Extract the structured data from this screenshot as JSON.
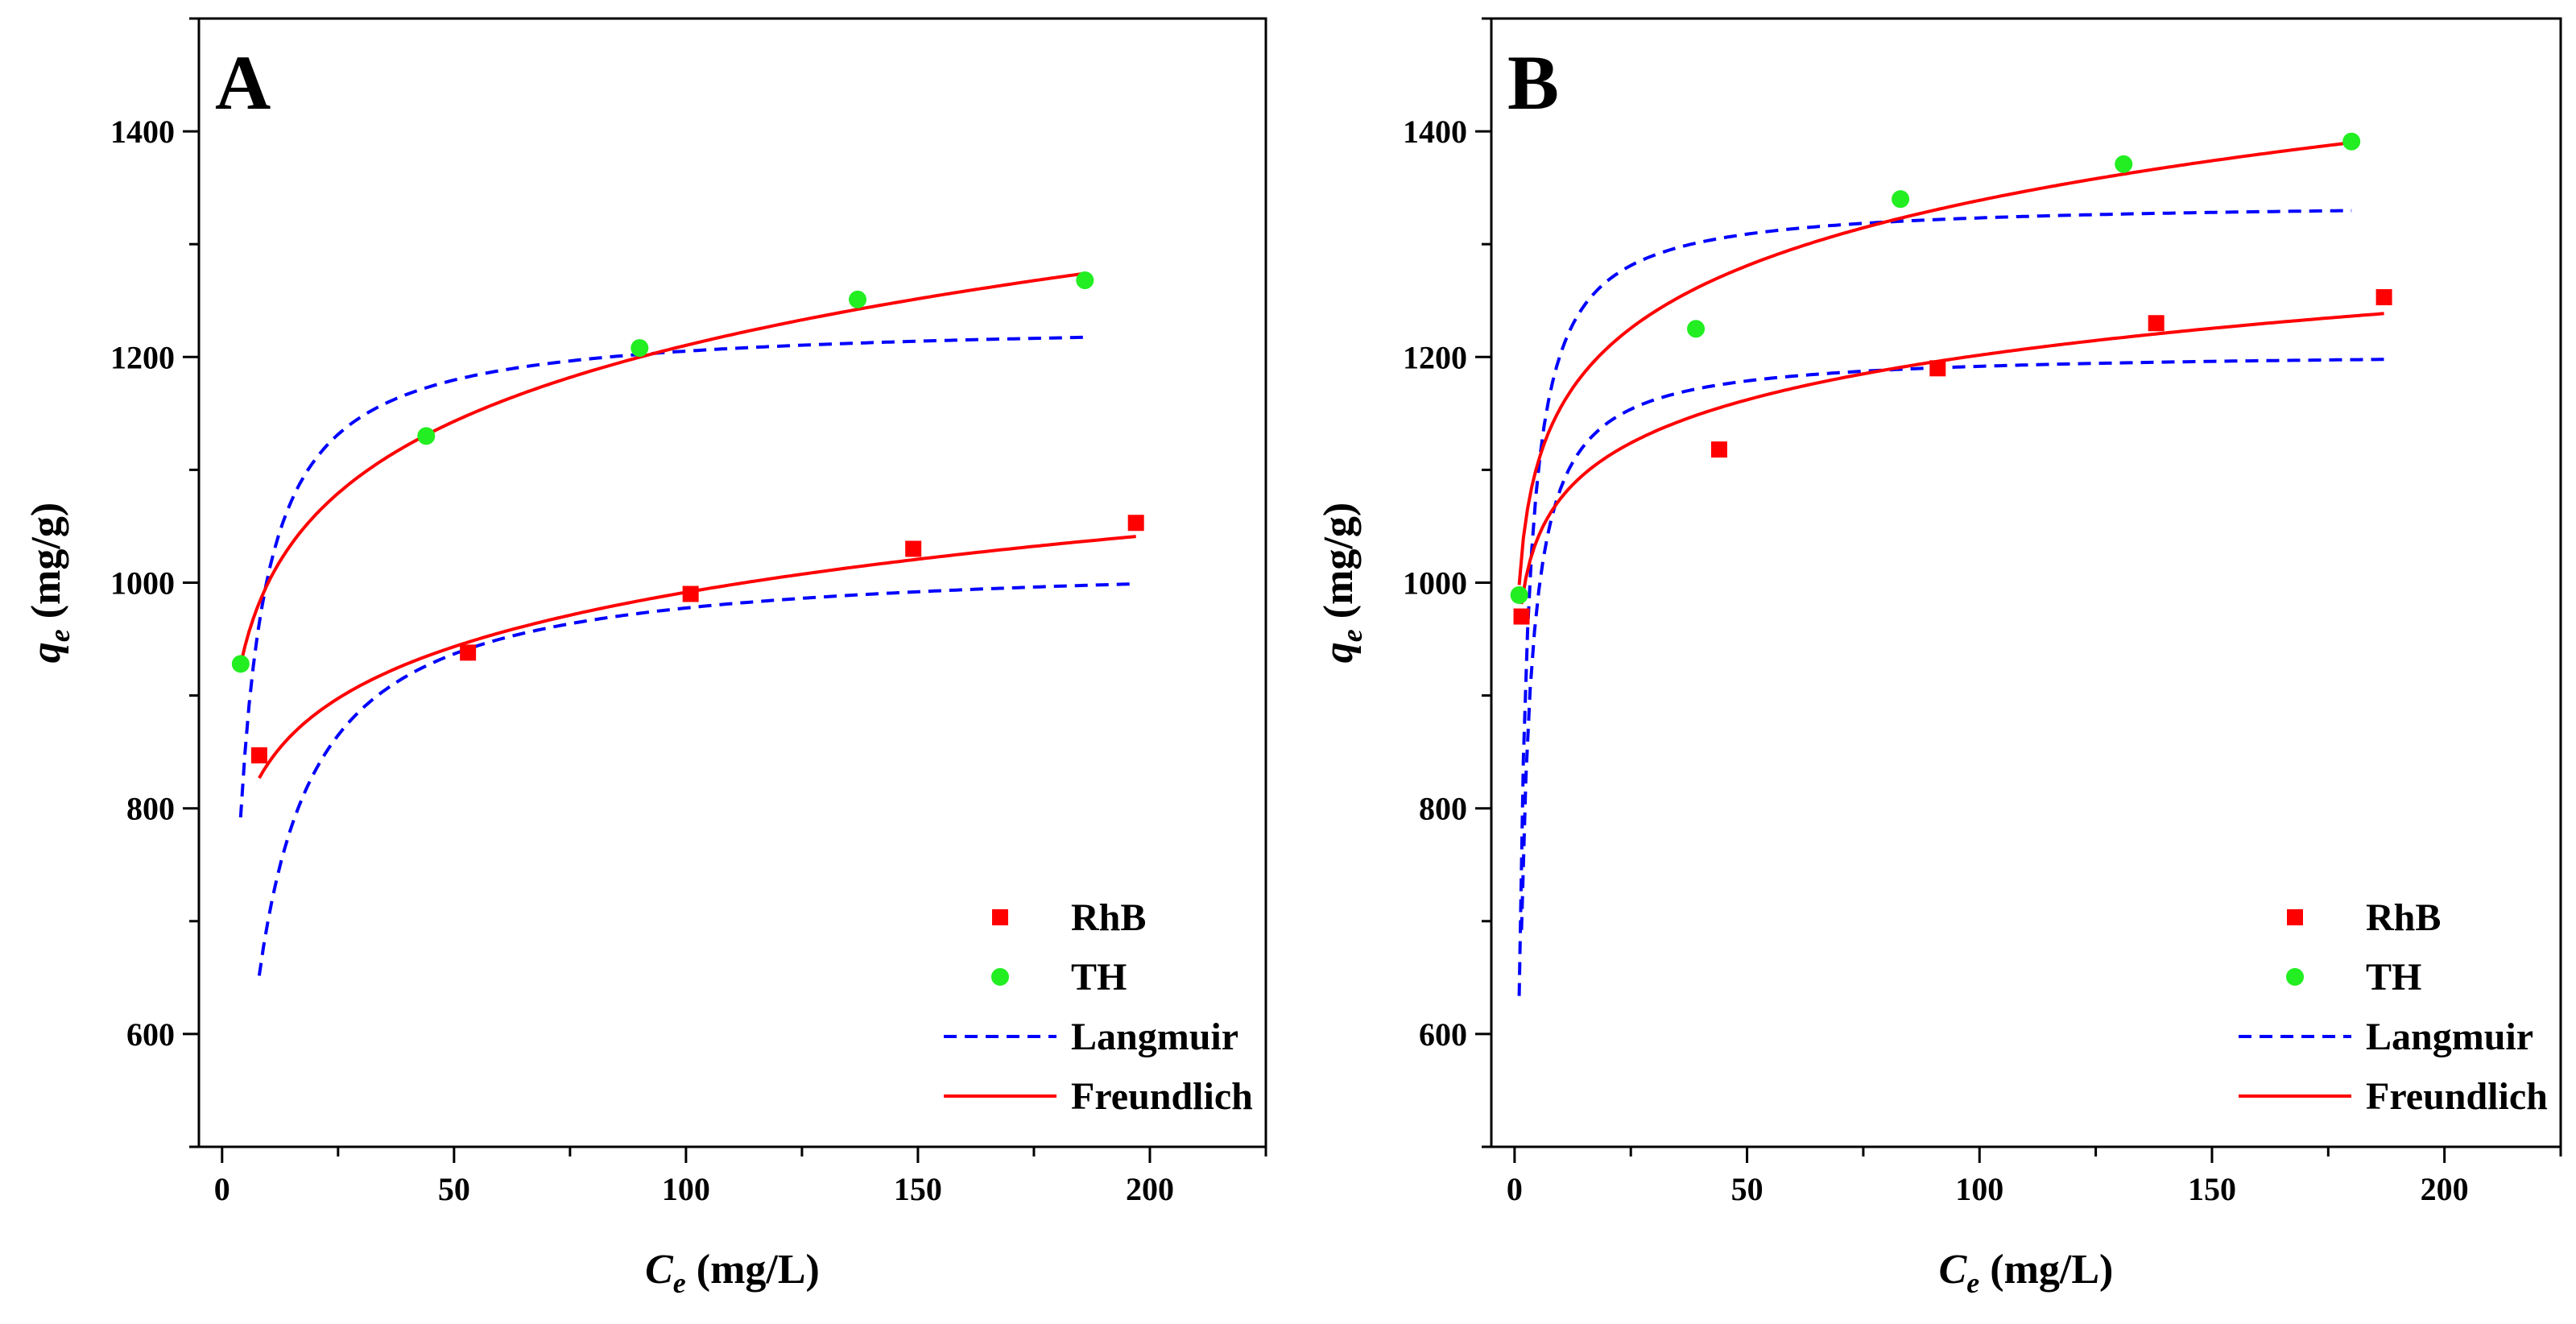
{
  "chart_data": [
    {
      "panel_label": "A",
      "type": "scatter",
      "xlabel": {
        "main": "C",
        "sub": "e",
        "unit": " (mg/L)"
      },
      "ylabel": {
        "main": "q",
        "sub": "e",
        "unit": " (mg/g)"
      },
      "xlim": [
        -5,
        225
      ],
      "ylim": [
        500,
        1500
      ],
      "x_ticks": [
        0,
        50,
        100,
        150,
        200
      ],
      "y_ticks": [
        600,
        800,
        1000,
        1200,
        1400
      ],
      "legend": {
        "placement": "bottom-right",
        "entries": [
          "RhB",
          "TH",
          "Langmuir",
          "Freundlich"
        ]
      },
      "series": [
        {
          "name": "RhB",
          "marker": "square",
          "color": "#ff0000",
          "x": [
            8,
            53,
            101,
            149,
            197
          ],
          "y": [
            847,
            938,
            990,
            1030,
            1053
          ]
        },
        {
          "name": "TH",
          "marker": "circle",
          "color": "#22ee22",
          "x": [
            4,
            44,
            90,
            137,
            186
          ],
          "y": [
            928,
            1130,
            1208,
            1251,
            1268
          ]
        }
      ],
      "fits": [
        {
          "name": "Langmuir",
          "applies_to": "RhB",
          "style": "dashed",
          "color": "#0000ff",
          "model": "langmuir",
          "qm": 1022,
          "K": 0.22,
          "x_range": [
            8,
            197
          ]
        },
        {
          "name": "Langmuir",
          "applies_to": "TH",
          "style": "dashed",
          "color": "#0000ff",
          "model": "langmuir",
          "qm": 1232,
          "K": 0.45,
          "x_range": [
            4,
            186
          ]
        },
        {
          "name": "Freundlich",
          "applies_to": "RhB",
          "style": "solid",
          "color": "#ff0000",
          "model": "freundlich",
          "KF": 712,
          "n_inv": 0.0719,
          "x_range": [
            8,
            197
          ]
        },
        {
          "name": "Freundlich",
          "applies_to": "TH",
          "style": "solid",
          "color": "#ff0000",
          "model": "freundlich",
          "KF": 827,
          "n_inv": 0.0827,
          "x_range": [
            4,
            186
          ]
        }
      ]
    },
    {
      "panel_label": "B",
      "type": "scatter",
      "xlabel": {
        "main": "C",
        "sub": "e",
        "unit": " (mg/L)"
      },
      "ylabel": {
        "main": "q",
        "sub": "e",
        "unit": " (mg/g)"
      },
      "xlim": [
        -5,
        225
      ],
      "ylim": [
        500,
        1500
      ],
      "x_ticks": [
        0,
        50,
        100,
        150,
        200
      ],
      "y_ticks": [
        600,
        800,
        1000,
        1200,
        1400
      ],
      "legend": {
        "placement": "bottom-right",
        "entries": [
          "RhB",
          "TH",
          "Langmuir",
          "Freundlich"
        ]
      },
      "series": [
        {
          "name": "RhB",
          "marker": "square",
          "color": "#ff0000",
          "x": [
            1.5,
            44,
            91,
            138,
            187
          ],
          "y": [
            970,
            1118,
            1190,
            1230,
            1253
          ]
        },
        {
          "name": "TH",
          "marker": "circle",
          "color": "#22ee22",
          "x": [
            1,
            39,
            83,
            131,
            180
          ],
          "y": [
            989,
            1225,
            1340,
            1371,
            1391
          ]
        }
      ],
      "fits": [
        {
          "name": "Langmuir",
          "applies_to": "RhB",
          "style": "dashed",
          "color": "#0000ff",
          "model": "langmuir",
          "qm": 1205,
          "K": 0.9,
          "x_range": [
            1.5,
            187
          ]
        },
        {
          "name": "Langmuir",
          "applies_to": "TH",
          "style": "dashed",
          "color": "#0000ff",
          "model": "langmuir",
          "qm": 1338,
          "K": 0.9,
          "x_range": [
            1,
            180
          ]
        },
        {
          "name": "Freundlich",
          "applies_to": "RhB",
          "style": "solid",
          "color": "#ff0000",
          "model": "freundlich",
          "KF": 962,
          "n_inv": 0.0483,
          "x_range": [
            1.5,
            187
          ]
        },
        {
          "name": "Freundlich",
          "applies_to": "TH",
          "style": "solid",
          "color": "#ff0000",
          "model": "freundlich",
          "KF": 998,
          "n_inv": 0.0638,
          "x_range": [
            1,
            180
          ]
        }
      ]
    }
  ]
}
